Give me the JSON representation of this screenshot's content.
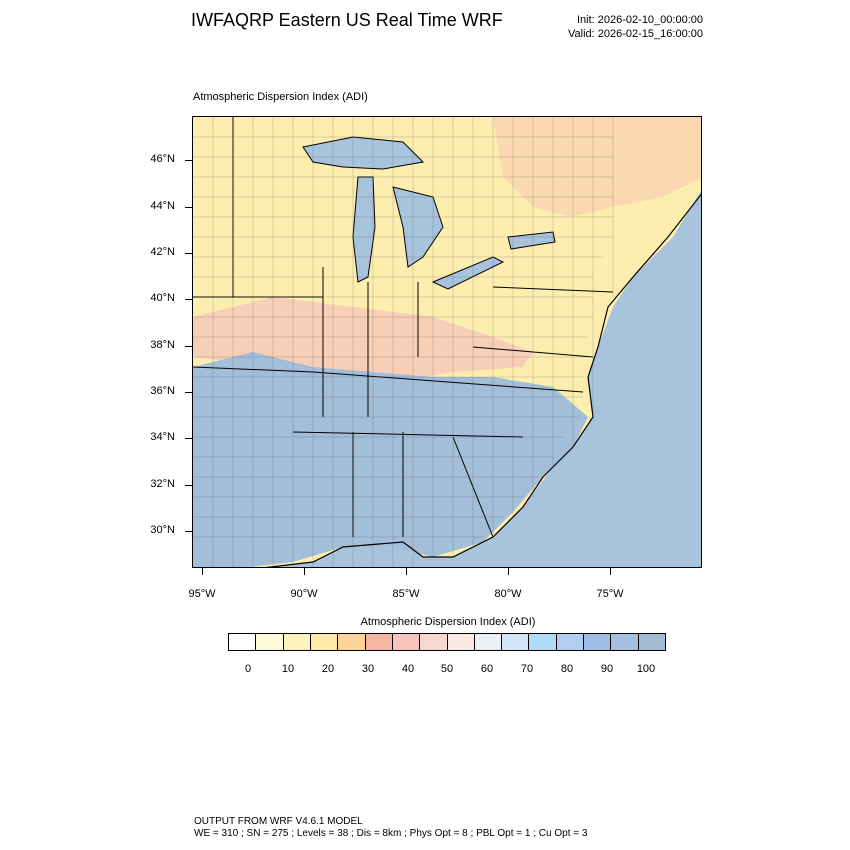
{
  "header": {
    "title": "IWFAQRP Eastern US Real Time WRF",
    "init": "Init: 2026-02-10_00:00:00",
    "valid": "Valid: 2026-02-15_16:00:00"
  },
  "map": {
    "subtitle": "Atmospheric Dispersion Index   (ADI)",
    "lat_labels": [
      "46°N",
      "44°N",
      "42°N",
      "40°N",
      "38°N",
      "36°N",
      "34°N",
      "32°N",
      "30°N"
    ],
    "lon_labels": [
      "95°W",
      "90°W",
      "85°W",
      "80°W",
      "75°W"
    ],
    "colors": {
      "water": "#a8c4dc",
      "land_yellow": "#fdeeb0",
      "land_pink": "#f6c9b8",
      "land_blue": "#a3bed8",
      "border": "#000000"
    }
  },
  "colorbar": {
    "title": "Atmospheric Dispersion Index  (ADI)",
    "labels": [
      "0",
      "10",
      "20",
      "30",
      "40",
      "50",
      "60",
      "70",
      "80",
      "90",
      "100"
    ],
    "colors": [
      "#ffffff",
      "#fffbd8",
      "#fef3bf",
      "#fde9a8",
      "#fbd499",
      "#f5b7a1",
      "#f6c3bd",
      "#f8d7d3",
      "#fbe9e6",
      "#eef0f8",
      "#d2e6f8",
      "#aedcf5",
      "#b1cdf0",
      "#9ebce6",
      "#a6bfe0",
      "#a5bbd4"
    ]
  },
  "footer": {
    "line1": "OUTPUT FROM WRF V4.6.1 MODEL",
    "line2": "WE = 310 ; SN = 275 ; Levels = 38 ; Dis = 8km ; Phys Opt = 8 ; PBL Opt = 1 ; Cu Opt = 3"
  }
}
